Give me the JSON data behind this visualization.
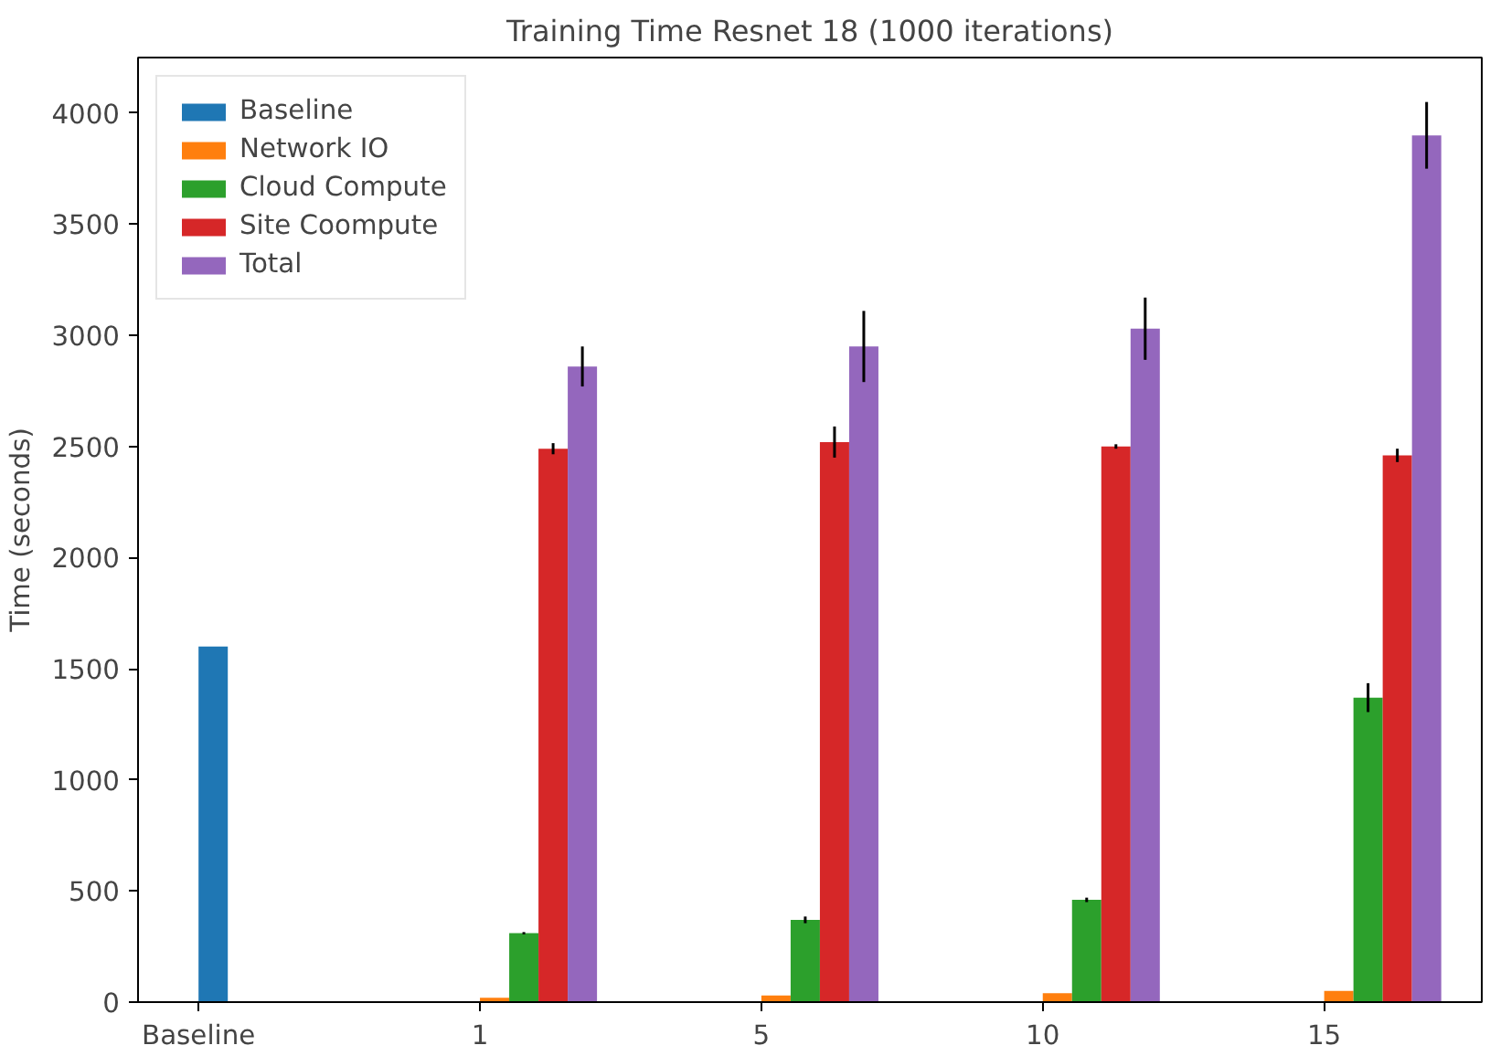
{
  "chart_data": {
    "type": "bar",
    "title": "Training Time Resnet 18 (1000 iterations)",
    "ylabel": "Time (seconds)",
    "categories": [
      "Baseline",
      "1",
      "5",
      "10",
      "15"
    ],
    "ylim": [
      0,
      4250
    ],
    "yticks": [
      0,
      500,
      1000,
      1500,
      2000,
      2500,
      3000,
      3500,
      4000
    ],
    "grid": false,
    "legend": "top left",
    "series": [
      {
        "name": "Baseline",
        "color": "#1f77b4",
        "values": [
          1600,
          null,
          null,
          null,
          null
        ]
      },
      {
        "name": "Network IO",
        "color": "#ff7f0e",
        "values": [
          null,
          20,
          30,
          40,
          50
        ]
      },
      {
        "name": "Cloud Compute",
        "color": "#2ca02c",
        "values": [
          null,
          310,
          370,
          460,
          1370
        ],
        "errors": [
          null,
          5,
          15,
          10,
          65
        ]
      },
      {
        "name": "Site Coompute",
        "color": "#d62728",
        "values": [
          null,
          2490,
          2520,
          2500,
          2460
        ],
        "errors": [
          null,
          25,
          70,
          10,
          30
        ]
      },
      {
        "name": "Total",
        "color": "#9467bd",
        "values": [
          null,
          2860,
          2950,
          3030,
          3900
        ],
        "errors": [
          null,
          90,
          160,
          140,
          150
        ]
      }
    ]
  }
}
